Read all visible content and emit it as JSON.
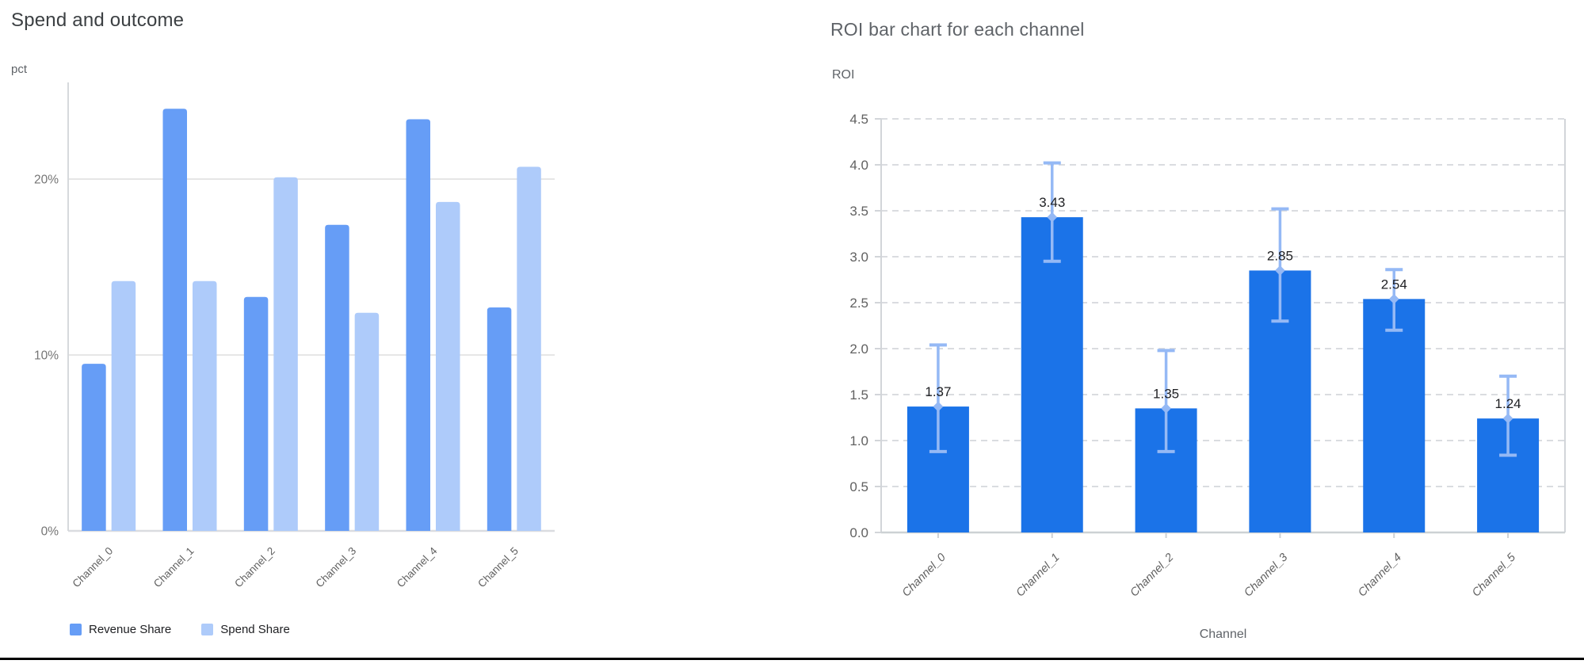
{
  "page": {
    "background": "#ffffff",
    "bottom_rule_color": "#000000"
  },
  "chart_data": [
    {
      "id": "spend-and-outcome",
      "type": "bar",
      "title": "Spend and outcome",
      "ylabel": "pct",
      "xlabel": "",
      "categories": [
        "Channel_0",
        "Channel_1",
        "Channel_2",
        "Channel_3",
        "Channel_4",
        "Channel_5"
      ],
      "series": [
        {
          "name": "Revenue Share",
          "color": "#669df6",
          "values": [
            9.5,
            24.0,
            13.3,
            17.4,
            23.4,
            12.7
          ]
        },
        {
          "name": "Spend Share",
          "color": "#aecbfa",
          "values": [
            14.2,
            14.2,
            20.1,
            12.4,
            18.7,
            20.7
          ]
        }
      ],
      "yticks": [
        0,
        10,
        20
      ],
      "ytick_labels": [
        "0%",
        "10%",
        "20%"
      ],
      "ylim": [
        0,
        25.5
      ],
      "grid": "solid-horizontal",
      "legend_position": "bottom-left",
      "gridline_color": "#e6e6e6",
      "axis_color": "#d6d9dc",
      "baseline_color": "#dadce0"
    },
    {
      "id": "roi-by-channel",
      "type": "bar",
      "title": "ROI bar chart for each channel",
      "ylabel": "ROI",
      "xlabel": "Channel",
      "categories": [
        "Channel_0",
        "Channel_1",
        "Channel_2",
        "Channel_3",
        "Channel_4",
        "Channel_5"
      ],
      "values": [
        1.37,
        3.43,
        1.35,
        2.85,
        2.54,
        1.24
      ],
      "bar_labels": [
        "1.37",
        "3.43",
        "1.35",
        "2.85",
        "2.54",
        "1.24"
      ],
      "error_low": [
        0.88,
        2.95,
        0.88,
        2.3,
        2.2,
        0.84
      ],
      "error_high": [
        2.04,
        4.02,
        1.98,
        3.52,
        2.86,
        1.7
      ],
      "yticks": [
        0.0,
        0.5,
        1.0,
        1.5,
        2.0,
        2.5,
        3.0,
        3.5,
        4.0,
        4.5
      ],
      "ytick_labels": [
        "0.0",
        "0.5",
        "1.0",
        "1.5",
        "2.0",
        "2.5",
        "3.0",
        "3.5",
        "4.0",
        "4.5"
      ],
      "ylim": [
        0,
        4.5
      ],
      "grid": "dashed-horizontal",
      "legend_position": "none",
      "bar_color": "#1b73e8",
      "error_color": "#95b9f5",
      "gridline_color": "#dadce0",
      "axis_color": "#d2d5d9",
      "baseline_color": "#cdd1d4"
    }
  ]
}
